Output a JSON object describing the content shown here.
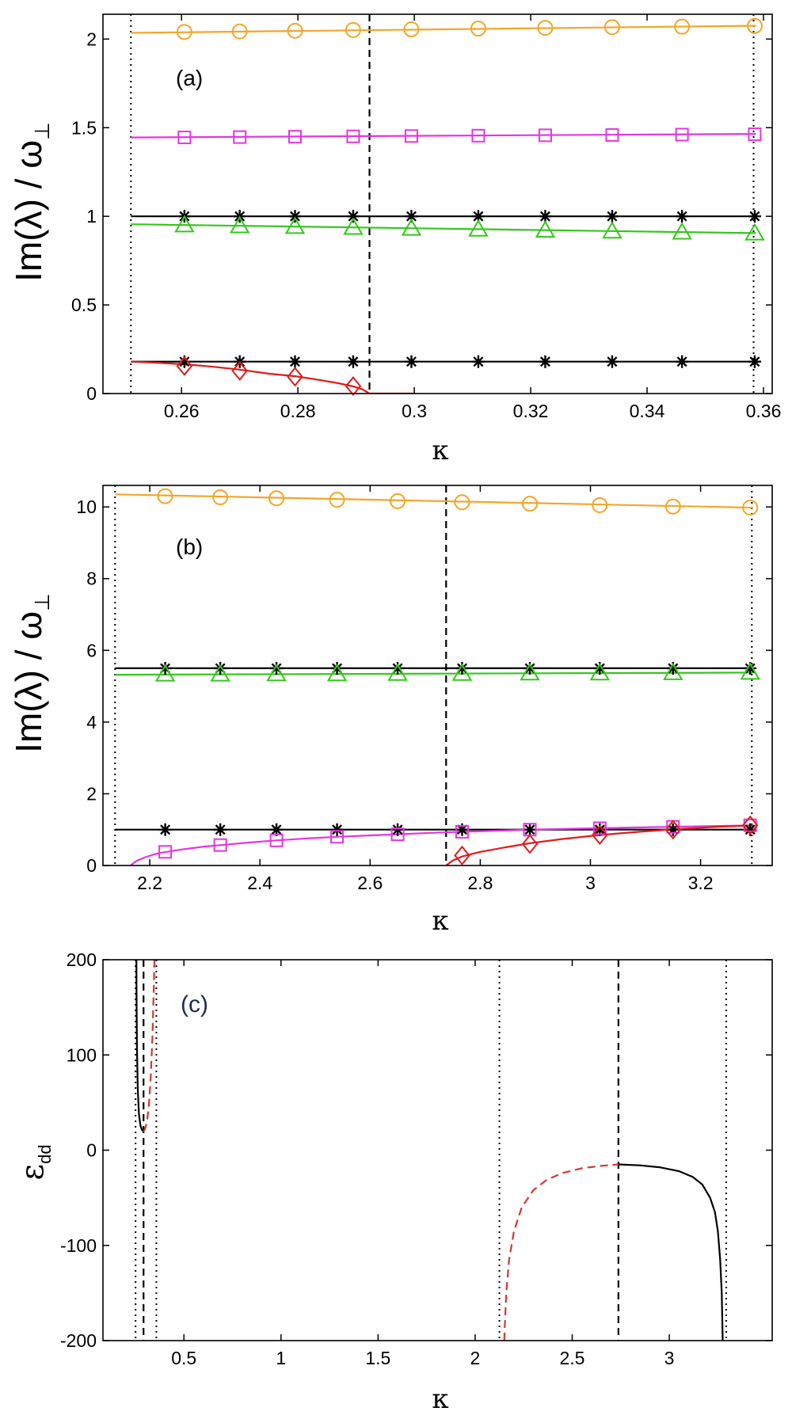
{
  "colors": {
    "orange": "#f2a629",
    "magenta": "#e535e0",
    "green": "#34c71c",
    "red": "#e01b1b",
    "darkred": "#cc3b30",
    "black": "#000000",
    "panel_c_label": "#1f2a52"
  },
  "chart_data": [
    {
      "id": "a",
      "type": "line",
      "panel_label": "(a)",
      "xlabel": "κ",
      "ylabel": {
        "main": "Im(λ) / ω",
        "sub": "⊥"
      },
      "xlim": [
        0.2465,
        0.3615
      ],
      "ylim": [
        0,
        2.14
      ],
      "xticks": [
        {
          "v": 0.26,
          "label": "0.26"
        },
        {
          "v": 0.28,
          "label": "0.28"
        },
        {
          "v": 0.3,
          "label": "0.3"
        },
        {
          "v": 0.32,
          "label": "0.32"
        },
        {
          "v": 0.34,
          "label": "0.34"
        },
        {
          "v": 0.36,
          "label": "0.36"
        }
      ],
      "yticks": [
        {
          "v": 0,
          "label": "0"
        },
        {
          "v": 0.5,
          "label": "0.5"
        },
        {
          "v": 1,
          "label": "1"
        },
        {
          "v": 1.5,
          "label": "1.5"
        },
        {
          "v": 2,
          "label": "2"
        }
      ],
      "vlines": [
        {
          "x": 0.2513,
          "style": "dotted"
        },
        {
          "x": 0.2923,
          "style": "dashed"
        },
        {
          "x": 0.3583,
          "style": "dotted"
        }
      ],
      "series": [
        {
          "name": "orange circles",
          "color": "orange",
          "marker": "circle",
          "x": [
            0.2513,
            0.3587
          ],
          "y": [
            2.035,
            2.075
          ],
          "mx": [
            0.2605,
            0.27,
            0.2795,
            0.2895,
            0.2995,
            0.311,
            0.3225,
            0.334,
            0.346,
            0.3585
          ],
          "my": [
            2.04,
            2.043,
            2.047,
            2.051,
            2.055,
            2.059,
            2.063,
            2.067,
            2.07,
            2.074
          ]
        },
        {
          "name": "magenta squares",
          "color": "magenta",
          "marker": "square",
          "x": [
            0.2513,
            0.3587
          ],
          "y": [
            1.445,
            1.465
          ],
          "mx": [
            0.2605,
            0.27,
            0.2795,
            0.2895,
            0.2995,
            0.311,
            0.3225,
            0.334,
            0.346,
            0.3585
          ],
          "my": [
            1.445,
            1.447,
            1.449,
            1.451,
            1.453,
            1.455,
            1.457,
            1.459,
            1.461,
            1.463
          ]
        },
        {
          "name": "black stars 1",
          "color": "black",
          "marker": "star",
          "x": [
            0.2513,
            0.3587
          ],
          "y": [
            1.0,
            1.0
          ],
          "mx": [
            0.2605,
            0.27,
            0.2795,
            0.2895,
            0.2995,
            0.311,
            0.3225,
            0.334,
            0.346,
            0.3585
          ],
          "my": [
            1,
            1,
            1,
            1,
            1,
            1,
            1,
            1,
            1,
            1
          ]
        },
        {
          "name": "green triangles",
          "color": "green",
          "marker": "triangle",
          "x": [
            0.2513,
            0.3587
          ],
          "y": [
            0.955,
            0.905
          ],
          "mx": [
            0.2605,
            0.27,
            0.2795,
            0.2895,
            0.2995,
            0.311,
            0.3225,
            0.334,
            0.346,
            0.3585
          ],
          "my": [
            0.95,
            0.945,
            0.941,
            0.936,
            0.931,
            0.926,
            0.92,
            0.915,
            0.909,
            0.904
          ]
        },
        {
          "name": "black stars 2",
          "color": "black",
          "marker": "star",
          "x": [
            0.2513,
            0.3587
          ],
          "y": [
            0.18,
            0.18
          ],
          "mx": [
            0.2605,
            0.27,
            0.2795,
            0.2895,
            0.2995,
            0.311,
            0.3225,
            0.334,
            0.346,
            0.3585
          ],
          "my": [
            0.18,
            0.18,
            0.18,
            0.18,
            0.18,
            0.18,
            0.18,
            0.18,
            0.18,
            0.18
          ]
        },
        {
          "name": "red diamonds",
          "color": "red",
          "marker": "diamond",
          "x": [
            0.2513,
            0.256,
            0.2605,
            0.265,
            0.27,
            0.275,
            0.2795,
            0.284,
            0.287,
            0.2895,
            0.291,
            0.2923,
            0.297,
            0.3
          ],
          "y": [
            0.18,
            0.174,
            0.165,
            0.153,
            0.135,
            0.112,
            0.098,
            0.075,
            0.058,
            0.04,
            0.025,
            0.0,
            0.0,
            0.0
          ],
          "mx": [
            0.2605,
            0.27,
            0.2795,
            0.2895
          ],
          "my": [
            0.155,
            0.128,
            0.095,
            0.042
          ]
        }
      ]
    },
    {
      "id": "b",
      "type": "line",
      "panel_label": "(b)",
      "xlabel": "κ",
      "ylabel": {
        "main": "Im(λ) / ω",
        "sub": "⊥"
      },
      "xlim": [
        2.115,
        3.33
      ],
      "ylim": [
        0,
        10.6
      ],
      "xticks": [
        {
          "v": 2.2,
          "label": "2.2"
        },
        {
          "v": 2.4,
          "label": "2.4"
        },
        {
          "v": 2.6,
          "label": "2.6"
        },
        {
          "v": 2.8,
          "label": "2.8"
        },
        {
          "v": 3.0,
          "label": "3"
        },
        {
          "v": 3.2,
          "label": "3.2"
        }
      ],
      "yticks": [
        {
          "v": 0,
          "label": "0"
        },
        {
          "v": 2,
          "label": "2"
        },
        {
          "v": 4,
          "label": "4"
        },
        {
          "v": 6,
          "label": "6"
        },
        {
          "v": 8,
          "label": "8"
        },
        {
          "v": 10,
          "label": "10"
        }
      ],
      "vlines": [
        {
          "x": 2.137,
          "style": "dotted"
        },
        {
          "x": 2.738,
          "style": "dashed"
        },
        {
          "x": 3.293,
          "style": "dotted"
        }
      ],
      "series": [
        {
          "name": "orange circles",
          "color": "orange",
          "marker": "circle",
          "x": [
            2.137,
            3.295
          ],
          "y": [
            10.35,
            9.98
          ],
          "mx": [
            2.228,
            2.328,
            2.43,
            2.54,
            2.65,
            2.767,
            2.89,
            3.017,
            3.15,
            3.29
          ],
          "my": [
            10.3,
            10.27,
            10.24,
            10.2,
            10.16,
            10.13,
            10.09,
            10.05,
            10.01,
            9.98
          ]
        },
        {
          "name": "black stars 1",
          "color": "black",
          "marker": "star",
          "x": [
            2.137,
            3.295
          ],
          "y": [
            5.5,
            5.5
          ],
          "mx": [
            2.228,
            2.328,
            2.43,
            2.54,
            2.65,
            2.767,
            2.89,
            3.017,
            3.15,
            3.29
          ],
          "my": [
            5.5,
            5.5,
            5.5,
            5.5,
            5.5,
            5.5,
            5.5,
            5.5,
            5.5,
            5.5
          ]
        },
        {
          "name": "green triangles",
          "color": "green",
          "marker": "triangle",
          "x": [
            2.137,
            3.295
          ],
          "y": [
            5.32,
            5.38
          ],
          "mx": [
            2.228,
            2.328,
            2.43,
            2.54,
            2.65,
            2.767,
            2.89,
            3.017,
            3.15,
            3.29
          ],
          "my": [
            5.33,
            5.33,
            5.34,
            5.34,
            5.35,
            5.35,
            5.36,
            5.36,
            5.37,
            5.38
          ]
        },
        {
          "name": "black stars 2",
          "color": "black",
          "marker": "star",
          "x": [
            2.137,
            3.295
          ],
          "y": [
            1.0,
            1.0
          ],
          "mx": [
            2.228,
            2.328,
            2.43,
            2.54,
            2.65,
            2.767,
            2.89,
            3.017,
            3.15,
            3.29
          ],
          "my": [
            1,
            1,
            1,
            1,
            1,
            1,
            1,
            1,
            1,
            1
          ]
        },
        {
          "name": "magenta squares",
          "color": "magenta",
          "marker": "square",
          "x": [
            2.165,
            2.175,
            2.19,
            2.21,
            2.23,
            2.26,
            2.3,
            2.33,
            2.38,
            2.43,
            2.49,
            2.54,
            2.6,
            2.65,
            2.71,
            2.767,
            2.83,
            2.89,
            2.95,
            3.017,
            3.08,
            3.15,
            3.22,
            3.295
          ],
          "y": [
            0.0,
            0.12,
            0.22,
            0.32,
            0.38,
            0.45,
            0.53,
            0.57,
            0.64,
            0.7,
            0.76,
            0.8,
            0.84,
            0.87,
            0.91,
            0.94,
            0.97,
            1.0,
            1.02,
            1.04,
            1.06,
            1.08,
            1.1,
            1.12
          ],
          "mx": [
            2.228,
            2.328,
            2.43,
            2.54,
            2.65,
            2.767,
            2.89,
            3.017,
            3.15,
            3.29
          ],
          "my": [
            0.38,
            0.57,
            0.7,
            0.8,
            0.87,
            0.94,
            1.0,
            1.04,
            1.08,
            1.12
          ]
        },
        {
          "name": "red diamonds",
          "color": "red",
          "marker": "diamond",
          "x": [
            2.738,
            2.75,
            2.767,
            2.8,
            2.85,
            2.89,
            2.95,
            3.017,
            3.08,
            3.15,
            3.22,
            3.295
          ],
          "y": [
            0.0,
            0.14,
            0.25,
            0.38,
            0.52,
            0.62,
            0.74,
            0.85,
            0.93,
            1.01,
            1.07,
            1.12
          ],
          "mx": [
            2.767,
            2.89,
            3.017,
            3.15,
            3.29
          ],
          "my": [
            0.28,
            0.6,
            0.85,
            1.0,
            1.12
          ]
        }
      ]
    },
    {
      "id": "c",
      "type": "line",
      "panel_label": "(c)",
      "xlabel": "κ",
      "ylabel": {
        "main": "ε",
        "sub": "dd"
      },
      "xlim": [
        0.083,
        3.53
      ],
      "ylim": [
        -200,
        200
      ],
      "xticks": [
        {
          "v": 0.5,
          "label": "0.5"
        },
        {
          "v": 1.0,
          "label": "1"
        },
        {
          "v": 1.5,
          "label": "1.5"
        },
        {
          "v": 2.0,
          "label": "2"
        },
        {
          "v": 2.5,
          "label": "2.5"
        },
        {
          "v": 3.0,
          "label": "3"
        }
      ],
      "yticks": [
        {
          "v": -200,
          "label": "-200"
        },
        {
          "v": -100,
          "label": "-100"
        },
        {
          "v": 0,
          "label": "0"
        },
        {
          "v": 100,
          "label": "100"
        },
        {
          "v": 200,
          "label": "200"
        }
      ],
      "vlines": [
        {
          "x": 0.251,
          "style": "dotted"
        },
        {
          "x": 0.292,
          "style": "dashed"
        },
        {
          "x": 0.358,
          "style": "dotted"
        },
        {
          "x": 2.125,
          "style": "dotted"
        },
        {
          "x": 2.738,
          "style": "dashed"
        },
        {
          "x": 3.293,
          "style": "dotted"
        }
      ],
      "series": [
        {
          "name": "stable branch 1",
          "color": "black",
          "style": "solid",
          "x": [
            0.255,
            0.256,
            0.258,
            0.262,
            0.268,
            0.276,
            0.284,
            0.292
          ],
          "y": [
            200,
            160,
            110,
            65,
            38,
            26,
            21,
            20
          ]
        },
        {
          "name": "unstable branch 1",
          "color": "darkred",
          "style": "dashed",
          "x": [
            0.292,
            0.3,
            0.31,
            0.32,
            0.33,
            0.338,
            0.344,
            0.348
          ],
          "y": [
            20,
            22,
            30,
            48,
            80,
            120,
            165,
            200
          ]
        },
        {
          "name": "unstable branch 2",
          "color": "darkred",
          "style": "dashed",
          "x": [
            2.15,
            2.152,
            2.16,
            2.175,
            2.2,
            2.24,
            2.3,
            2.37,
            2.45,
            2.55,
            2.65,
            2.738
          ],
          "y": [
            -200,
            -188,
            -150,
            -115,
            -85,
            -60,
            -42,
            -31,
            -24,
            -19,
            -16.5,
            -15
          ]
        },
        {
          "name": "stable branch 2",
          "color": "black",
          "style": "solid",
          "x": [
            2.738,
            2.85,
            2.95,
            3.05,
            3.12,
            3.17,
            3.21,
            3.235,
            3.25,
            3.262,
            3.27,
            3.275
          ],
          "y": [
            -15,
            -16,
            -18,
            -22,
            -28,
            -36,
            -50,
            -65,
            -85,
            -115,
            -150,
            -200
          ]
        }
      ]
    }
  ]
}
